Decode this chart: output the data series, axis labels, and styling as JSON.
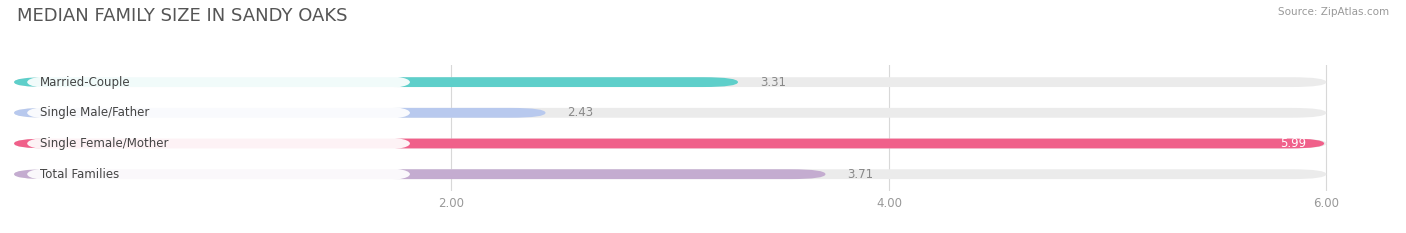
{
  "title": "MEDIAN FAMILY SIZE IN SANDY OAKS",
  "source": "Source: ZipAtlas.com",
  "categories": [
    "Married-Couple",
    "Single Male/Father",
    "Single Female/Mother",
    "Total Families"
  ],
  "values": [
    3.31,
    2.43,
    5.99,
    3.71
  ],
  "bar_colors": [
    "#5ecfca",
    "#b8c9ee",
    "#f0608a",
    "#c4acd0"
  ],
  "bar_bg_color": "#ebebeb",
  "xlim_data": [
    0,
    6.3
  ],
  "xmin": 0,
  "xmax": 6.0,
  "xticks": [
    2.0,
    4.0,
    6.0
  ],
  "xtick_labels": [
    "2.00",
    "4.00",
    "6.00"
  ],
  "title_fontsize": 13,
  "label_fontsize": 8.5,
  "value_fontsize": 8.5,
  "background_color": "#ffffff",
  "bar_height": 0.32,
  "grid_color": "#d8d8d8",
  "label_box_color": "#ffffff",
  "value_color_outside": "#888888",
  "value_color_inside": "#ffffff"
}
